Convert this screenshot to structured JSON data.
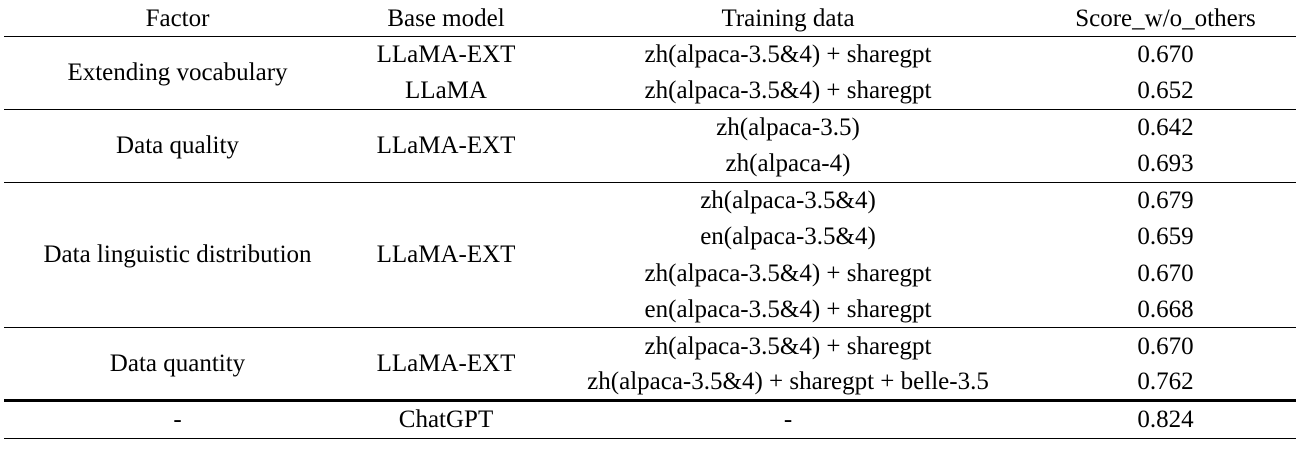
{
  "headers": {
    "factor": "Factor",
    "base_model": "Base model",
    "training_data": "Training data",
    "score": "Score_w/o_others"
  },
  "groups": [
    {
      "factor": "Extending vocabulary",
      "rows": [
        {
          "base_model": "LLaMA-EXT",
          "training_data": "zh(alpaca-3.5&4) + sharegpt",
          "score": "0.670",
          "bold": true
        },
        {
          "base_model": "LLaMA",
          "training_data": "zh(alpaca-3.5&4) + sharegpt",
          "score": "0.652",
          "bold": false
        }
      ]
    },
    {
      "factor": "Data quality",
      "base_model": "LLaMA-EXT",
      "rows": [
        {
          "training_data": "zh(alpaca-3.5)",
          "score": "0.642",
          "bold": false
        },
        {
          "training_data": "zh(alpaca-4)",
          "score": "0.693",
          "bold": true
        }
      ]
    },
    {
      "factor": "Data linguistic distribution",
      "base_model": "LLaMA-EXT",
      "rows": [
        {
          "training_data": "zh(alpaca-3.5&4)",
          "score": "0.679",
          "bold": true
        },
        {
          "training_data": "en(alpaca-3.5&4)",
          "score": "0.659",
          "bold": false
        },
        {
          "training_data": "zh(alpaca-3.5&4) + sharegpt",
          "score": "0.670",
          "bold": false
        },
        {
          "training_data": "en(alpaca-3.5&4) + sharegpt",
          "score": "0.668",
          "bold": false
        }
      ]
    },
    {
      "factor": "Data quantity",
      "base_model": "LLaMA-EXT",
      "rows": [
        {
          "training_data": "zh(alpaca-3.5&4) + sharegpt",
          "score": "0.670",
          "bold": false
        },
        {
          "training_data": "zh(alpaca-3.5&4) + sharegpt + belle-3.5",
          "score": "0.762",
          "bold": true
        }
      ]
    }
  ],
  "reference": {
    "factor": "-",
    "base_model": "ChatGPT",
    "training_data": "-",
    "score": "0.824"
  }
}
